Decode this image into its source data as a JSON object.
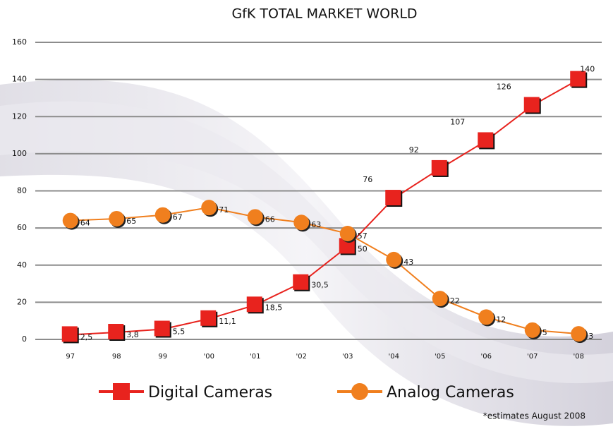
{
  "chart_data": {
    "type": "line",
    "title": "GfK TOTAL MARKET WORLD",
    "note": "*estimates August 2008",
    "categories": [
      "97",
      "98",
      "99",
      "'00",
      "'01",
      "'02",
      "'03",
      "'04",
      "'05",
      "'06",
      "'07",
      "'08"
    ],
    "series": [
      {
        "name": "Digital Cameras",
        "color": "#e8231e",
        "marker": "square",
        "values": [
          2.5,
          3.8,
          5.5,
          11.1,
          18.5,
          30.5,
          50,
          76,
          92,
          107,
          126,
          140
        ],
        "value_labels": [
          "2,5",
          "3,8",
          "5,5",
          "11,1",
          "18,5",
          "30,5",
          "50",
          "76",
          "92",
          "107",
          "126",
          "140"
        ]
      },
      {
        "name": "Analog Cameras",
        "color": "#f07f1e",
        "marker": "circle",
        "values": [
          64,
          65,
          67,
          71,
          66,
          63,
          57,
          43,
          22,
          12,
          5,
          3
        ]
      }
    ],
    "ylim": [
      0,
      160
    ],
    "yticks": [
      0,
      20,
      40,
      60,
      80,
      100,
      120,
      140,
      160
    ],
    "grid": true
  }
}
